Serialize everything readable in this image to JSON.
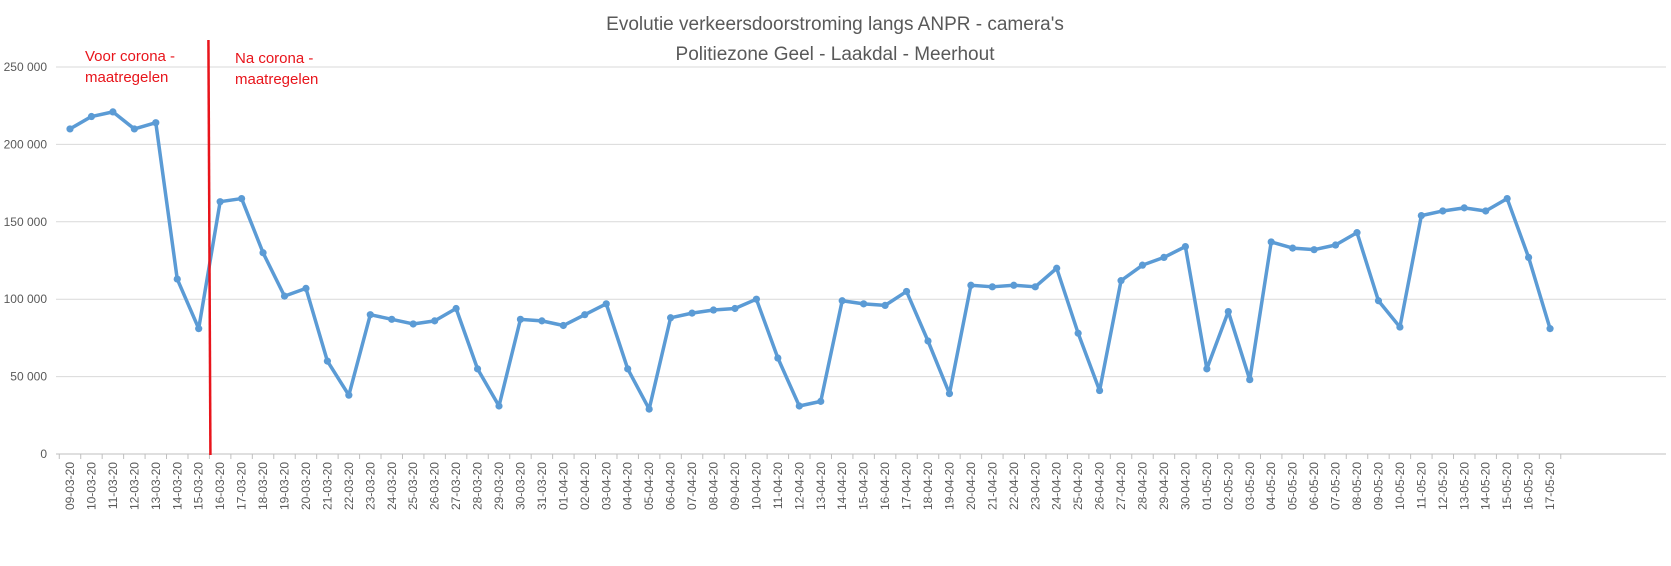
{
  "chart_data": {
    "type": "line",
    "title": "Evolutie verkeersdoorstroming langs ANPR - camera's",
    "subtitle": "Politiezone Geel - Laakdal - Meerhout",
    "xlabel": "",
    "ylabel": "",
    "ylim": [
      0,
      250000
    ],
    "y_ticks": [
      0,
      50000,
      100000,
      150000,
      200000,
      250000
    ],
    "y_tick_labels": [
      "0",
      "50 000",
      "100 000",
      "150 000",
      "200 000",
      "250 000"
    ],
    "grid": true,
    "legend": "none",
    "categories": [
      "09-03-20",
      "10-03-20",
      "11-03-20",
      "12-03-20",
      "13-03-20",
      "14-03-20",
      "15-03-20",
      "16-03-20",
      "17-03-20",
      "18-03-20",
      "19-03-20",
      "20-03-20",
      "21-03-20",
      "22-03-20",
      "23-03-20",
      "24-03-20",
      "25-03-20",
      "26-03-20",
      "27-03-20",
      "28-03-20",
      "29-03-20",
      "30-03-20",
      "31-03-20",
      "01-04-20",
      "02-04-20",
      "03-04-20",
      "04-04-20",
      "05-04-20",
      "06-04-20",
      "07-04-20",
      "08-04-20",
      "09-04-20",
      "10-04-20",
      "11-04-20",
      "12-04-20",
      "13-04-20",
      "14-04-20",
      "15-04-20",
      "16-04-20",
      "17-04-20",
      "18-04-20",
      "19-04-20",
      "20-04-20",
      "21-04-20",
      "22-04-20",
      "23-04-20",
      "24-04-20",
      "25-04-20",
      "26-04-20",
      "27-04-20",
      "28-04-20",
      "29-04-20",
      "30-04-20",
      "01-05-20",
      "02-05-20",
      "03-05-20",
      "04-05-20",
      "05-05-20",
      "06-05-20",
      "07-05-20",
      "08-05-20",
      "09-05-20",
      "10-05-20",
      "11-05-20",
      "12-05-20",
      "13-05-20",
      "14-05-20",
      "15-05-20",
      "16-05-20",
      "17-05-20"
    ],
    "series": [
      {
        "values": [
          210000,
          218000,
          221000,
          210000,
          214000,
          113000,
          81000,
          163000,
          165000,
          130000,
          102000,
          107000,
          60000,
          38000,
          90000,
          87000,
          84000,
          86000,
          94000,
          55000,
          31000,
          87000,
          86000,
          83000,
          90000,
          97000,
          55000,
          29000,
          88000,
          91000,
          93000,
          94000,
          100000,
          62000,
          31000,
          34000,
          99000,
          97000,
          96000,
          105000,
          73000,
          39000,
          109000,
          108000,
          109000,
          108000,
          120000,
          78000,
          41000,
          112000,
          122000,
          127000,
          134000,
          55000,
          92000,
          48000,
          137000,
          133000,
          132000,
          135000,
          143000,
          99000,
          82000,
          154000,
          157000,
          159000,
          157000,
          165000,
          127000,
          81000
        ],
        "color": "#5b9bd5"
      }
    ],
    "annotations": [
      {
        "text_lines": [
          "Voor corona -",
          "maatregelen"
        ],
        "color": "#e8141b"
      },
      {
        "text_lines": [
          "Na corona -",
          "maatregelen"
        ],
        "color": "#e8141b"
      }
    ],
    "divider": {
      "between": [
        "15-03-20",
        "16-03-20"
      ],
      "color": "#e8141b"
    }
  }
}
